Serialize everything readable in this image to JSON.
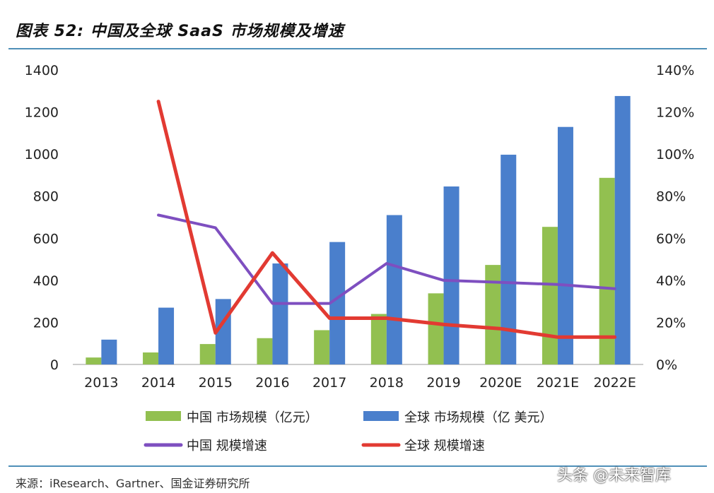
{
  "figure_label": "图表 52:",
  "figure_title": "中国及全球 SaaS 市场规模及增速",
  "source_text": "来源：iResearch、Gartner、国金证券研究所",
  "watermark": "头条 @未来智库",
  "colors": {
    "china_bar": "#92c050",
    "global_bar": "#4a7fcc",
    "china_line": "#7e4fc0",
    "global_line": "#e23a32",
    "rule": "#4f8fb8"
  },
  "chart_data": {
    "type": "bar",
    "categories": [
      "2013",
      "2014",
      "2015",
      "2016",
      "2017",
      "2018",
      "2019",
      "2020E",
      "2021E",
      "2022E"
    ],
    "series": [
      {
        "name": "中国 市场规模（亿元）",
        "type": "bar",
        "axis": "left",
        "values": [
          33,
          57,
          97,
          125,
          163,
          240,
          338,
          473,
          654,
          887
        ]
      },
      {
        "name": "全球 市场规模（亿 美元）",
        "type": "bar",
        "axis": "left",
        "values": [
          118,
          270,
          311,
          480,
          582,
          710,
          846,
          997,
          1129,
          1276
        ]
      },
      {
        "name": "中国 规模增速",
        "type": "line",
        "axis": "right",
        "values": [
          null,
          71,
          65,
          29,
          29,
          48,
          40,
          39,
          38,
          36
        ]
      },
      {
        "name": "全球 规模增速",
        "type": "line",
        "axis": "right",
        "values": [
          null,
          125,
          15,
          53,
          22,
          22,
          19,
          17,
          13,
          13
        ]
      }
    ],
    "left_axis": {
      "min": 0,
      "max": 1400,
      "ticks": [
        "0",
        "200",
        "400",
        "600",
        "800",
        "1000",
        "1200",
        "1400"
      ]
    },
    "right_axis": {
      "min": 0,
      "max": 140,
      "unit": "%",
      "ticks": [
        "0%",
        "20%",
        "40%",
        "60%",
        "80%",
        "100%",
        "120%",
        "140%"
      ]
    },
    "grid": false,
    "legend_position": "bottom"
  }
}
